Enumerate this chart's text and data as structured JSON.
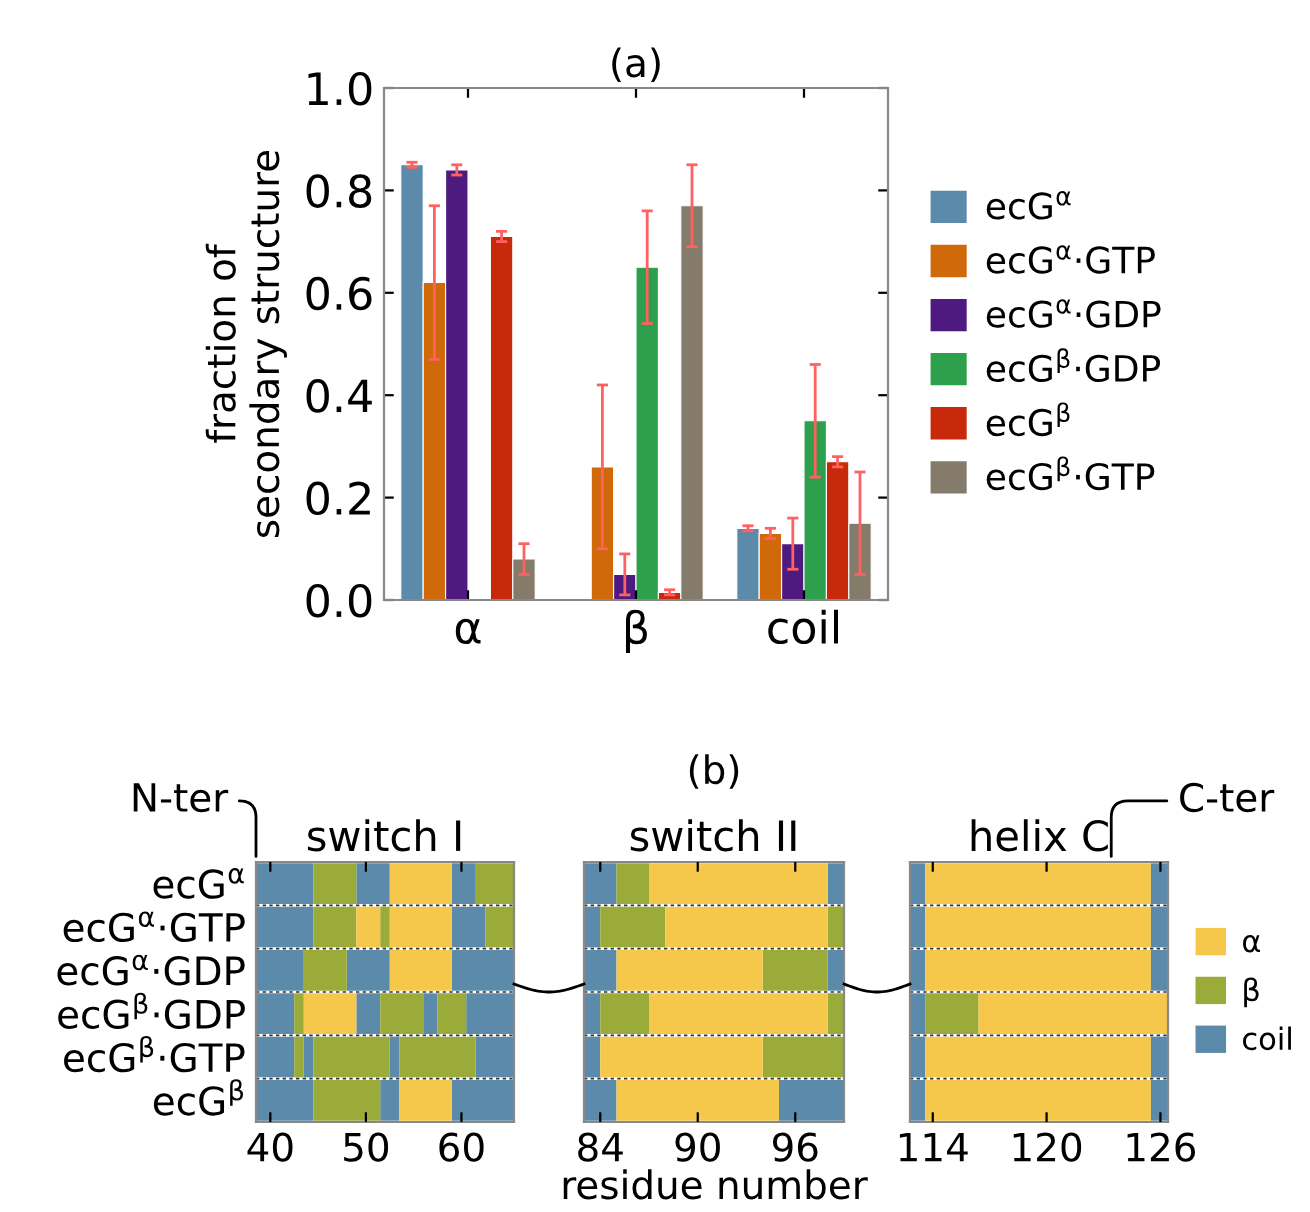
{
  "chart_data": [
    {
      "type": "bar",
      "title": "(a)",
      "ylabel": "fraction of\nsecondary structure",
      "categories": [
        "α",
        "β",
        "coil"
      ],
      "ylim": [
        0,
        1.0
      ],
      "yticks": [
        {
          "value": 0,
          "label": "0.0"
        },
        0.2,
        0.4,
        0.6,
        0.8,
        {
          "value": 1.0,
          "label": "1.0"
        }
      ],
      "legend": "right",
      "grid": false,
      "series": [
        {
          "name": "ecG$^{α}$",
          "color": "#5b8aab",
          "values": [
            0.85,
            null,
            0.14
          ],
          "errors": [
            0.005,
            null,
            0.005
          ]
        },
        {
          "name": "ecG$^{α}$·GTP",
          "color": "#d0690a",
          "values": [
            0.62,
            0.26,
            0.13
          ],
          "errors": [
            0.15,
            0.16,
            0.01
          ]
        },
        {
          "name": "ecG$^{α}$·GDP",
          "color": "#4f1a80",
          "values": [
            0.84,
            0.05,
            0.11
          ],
          "errors": [
            0.01,
            0.04,
            0.05
          ]
        },
        {
          "name": "ecG$^{β}$·GDP",
          "color": "#2ca04c",
          "values": [
            null,
            0.65,
            0.35
          ],
          "errors": [
            null,
            0.11,
            0.11
          ]
        },
        {
          "name": "ecG$^{β}$",
          "color": "#c8290a",
          "values": [
            0.71,
            0.015,
            0.27
          ],
          "errors": [
            0.01,
            0.005,
            0.01
          ]
        },
        {
          "name": "ecG$^{β}$·GTP",
          "color": "#857b6b",
          "values": [
            0.08,
            0.77,
            0.15
          ],
          "errors": [
            0.03,
            0.08,
            0.1
          ]
        }
      ]
    },
    {
      "type": "bar",
      "orientation": "horizontal",
      "title": "switch I",
      "annotations": [
        "N-ter"
      ],
      "categories": [
        "ecG$^{α}$",
        "ecG$^{α}$·GTP",
        "ecG$^{α}$·GDP",
        "ecG$^{β}$·GDP",
        "ecG$^{β}$·GTP",
        "ecG$^{β}$"
      ],
      "xlim": [
        38.5,
        65.5
      ],
      "xticks": [
        40,
        50,
        60
      ],
      "grid": "y",
      "series": [
        {
          "color": "#5b8aab",
          "base": [
            38.5,
            38.5,
            38.5,
            38.5,
            38.5,
            38.5
          ],
          "values": [
            6,
            6,
            5,
            4,
            4,
            6
          ]
        },
        {
          "color": "#5b8aab",
          "base": [
            49,
            59,
            48,
            49,
            43.5,
            51.5
          ],
          "values": [
            3.5,
            3.5,
            4.5,
            2.5,
            1,
            2
          ]
        },
        {
          "color": "#5b8aab",
          "base": [
            59,
            null,
            59,
            56,
            52.5,
            59
          ],
          "values": [
            2.5,
            null,
            6.5,
            1.5,
            1,
            6.5
          ]
        },
        {
          "color": "#5b8aab",
          "base": [
            null,
            null,
            null,
            60.5,
            61.5,
            null
          ],
          "values": [
            null,
            null,
            null,
            5,
            4,
            null
          ]
        },
        {
          "color": "#9aab3a",
          "base": [
            44.5,
            44.5,
            43.5,
            42.5,
            42.5,
            44.5
          ],
          "values": [
            4.5,
            4.5,
            4.5,
            1,
            1,
            7
          ]
        },
        {
          "color": "#9aab3a",
          "base": [
            61.5,
            51.5,
            null,
            51.5,
            44.5,
            null
          ],
          "values": [
            4,
            1,
            null,
            4.5,
            8,
            null
          ]
        },
        {
          "color": "#9aab3a",
          "base": [
            null,
            62.5,
            null,
            57.5,
            53.5,
            null
          ],
          "values": [
            null,
            3,
            null,
            3,
            8,
            null
          ]
        },
        {
          "color": "#f5c84c",
          "base": [
            52.5,
            49,
            52.5,
            43.5,
            null,
            53.5
          ],
          "values": [
            6.5,
            2.5,
            6.5,
            5.5,
            null,
            5.5
          ]
        },
        {
          "color": "#f5c84c",
          "base": [
            null,
            52.5,
            null,
            null,
            null,
            null
          ],
          "values": [
            null,
            6.5,
            null,
            null,
            null,
            null
          ]
        }
      ]
    },
    {
      "type": "bar",
      "orientation": "horizontal",
      "title": "switch II",
      "xlabel": "residue number",
      "annotations": [
        "(b)"
      ],
      "categories": [
        null,
        null,
        null,
        null,
        null,
        null
      ],
      "xlim": [
        83,
        99
      ],
      "xticks": [
        84,
        90,
        96
      ],
      "grid": "y",
      "tick_labels": "x",
      "series": [
        {
          "color": "#5b8aab",
          "base": [
            83,
            83,
            83,
            83,
            83,
            83
          ],
          "values": [
            2,
            1,
            2,
            1,
            1,
            2
          ]
        },
        {
          "color": "#5b8aab",
          "base": [
            98,
            null,
            98,
            null,
            null,
            95
          ],
          "values": [
            1,
            null,
            1,
            null,
            null,
            4
          ]
        },
        {
          "color": "#9aab3a",
          "base": [
            85,
            84,
            94,
            84,
            94,
            null
          ],
          "values": [
            2,
            4,
            4,
            3,
            5,
            null
          ]
        },
        {
          "color": "#9aab3a",
          "base": [
            null,
            98,
            null,
            98,
            null,
            null
          ],
          "values": [
            null,
            1,
            null,
            1,
            null,
            null
          ]
        },
        {
          "color": "#f5c84c",
          "base": [
            87,
            88,
            85,
            87,
            84,
            85
          ],
          "values": [
            11,
            10,
            9,
            11,
            10,
            10
          ]
        }
      ]
    },
    {
      "type": "bar",
      "orientation": "horizontal",
      "title": "helix C",
      "annotations": [
        "C-ter"
      ],
      "categories": [
        null,
        null,
        null,
        null,
        null,
        null
      ],
      "xlim": [
        112.8,
        126.4
      ],
      "xticks": [
        114,
        120,
        126
      ],
      "grid": "y",
      "tick_labels": "x",
      "legend": "right",
      "series": [
        {
          "color": "#5b8aab",
          "base": [
            112.8,
            112.8,
            112.8,
            112.8,
            112.8,
            112.8
          ],
          "values": [
            0.8,
            0.8,
            0.8,
            0.8,
            0.8,
            0.8
          ]
        },
        {
          "name": "α",
          "color": "#f5c84c",
          "base": [
            113.6,
            113.6,
            113.6,
            116.4,
            113.6,
            113.6
          ],
          "values": [
            11.9,
            11.9,
            11.9,
            10,
            11.9,
            11.9
          ]
        },
        {
          "name": "β",
          "color": "#9aab3a",
          "base": [
            null,
            null,
            null,
            113.6,
            null,
            null
          ],
          "values": [
            null,
            null,
            null,
            2.8,
            null,
            null
          ]
        },
        {
          "name": "coil",
          "color": "#5b8aab",
          "base": [
            125.5,
            125.5,
            125.5,
            null,
            125.5,
            125.5
          ],
          "values": [
            0.9,
            0.9,
            0.9,
            null,
            0.9,
            0.9
          ]
        }
      ]
    }
  ]
}
